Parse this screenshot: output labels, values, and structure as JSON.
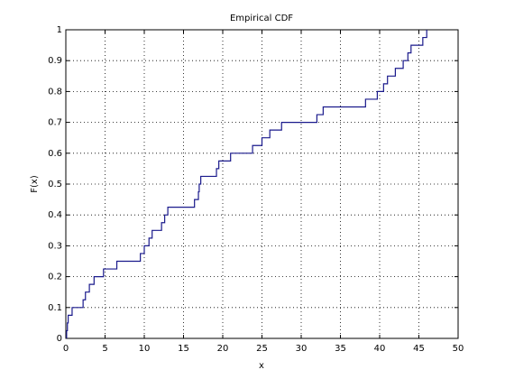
{
  "chart_data": {
    "type": "stairs",
    "title": "Empirical CDF",
    "xlabel": "x",
    "ylabel": "F(x)",
    "series": [
      {
        "color": "#1a1a8c",
        "x": [
          0.1,
          0.1,
          0.2,
          0.3,
          0.8,
          2.2,
          2.5,
          3.0,
          3.6,
          4.8,
          6.5,
          9.5,
          10.0,
          10.6,
          11.0,
          12.2,
          12.6,
          13.0,
          16.4,
          16.9,
          17.0,
          17.2,
          19.2,
          19.5,
          21.0,
          23.8,
          25.0,
          26.0,
          27.5,
          32.0,
          32.8,
          38.2,
          39.7,
          40.5,
          41.0,
          42.0,
          43.0,
          43.6,
          44.0,
          45.5,
          46.0
        ],
        "values": [
          0,
          0.025,
          0.05,
          0.075,
          0.1,
          0.125,
          0.15,
          0.175,
          0.2,
          0.225,
          0.25,
          0.275,
          0.3,
          0.325,
          0.35,
          0.375,
          0.4,
          0.425,
          0.45,
          0.475,
          0.5,
          0.525,
          0.55,
          0.575,
          0.6,
          0.625,
          0.65,
          0.675,
          0.7,
          0.725,
          0.75,
          0.775,
          0.8,
          0.825,
          0.85,
          0.875,
          0.9,
          0.925,
          0.95,
          0.975,
          1.0
        ]
      }
    ],
    "xlim": [
      0,
      50
    ],
    "xticks": [
      0,
      5,
      10,
      15,
      20,
      25,
      30,
      35,
      40,
      45,
      50
    ],
    "ylim": [
      0,
      1
    ],
    "yticks": [
      0,
      0.1,
      0.2,
      0.3,
      0.4,
      0.5,
      0.6,
      0.7,
      0.8,
      0.9,
      1
    ],
    "grid": true
  }
}
